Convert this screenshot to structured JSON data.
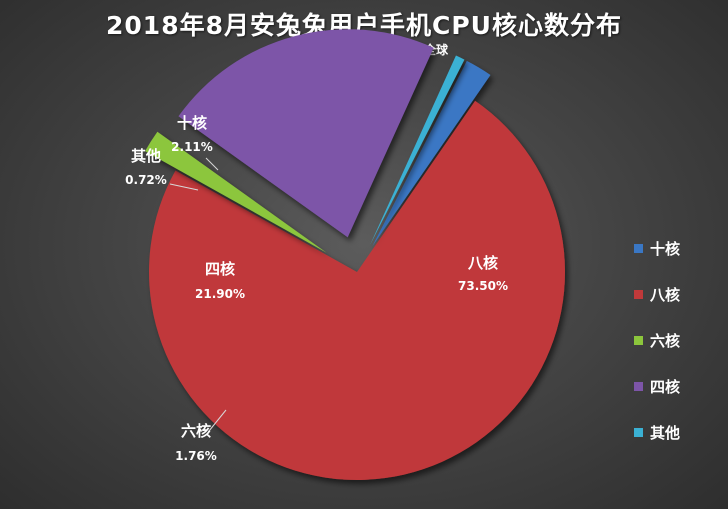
{
  "title": "2018年8月安兔兔用户手机CPU核心数分布",
  "subtitle": "数据来源：安兔兔，安卓，全球",
  "chart_data": {
    "type": "pie",
    "title": "2018年8月安兔兔用户手机CPU核心数分布",
    "subtitle": "数据来源：安兔兔，安卓，全球",
    "legend_position": "right",
    "slices": [
      {
        "name": "十核",
        "value": 2.11,
        "label": "2.11%",
        "color": "#3a77c4"
      },
      {
        "name": "八核",
        "value": 73.5,
        "label": "73.50%",
        "color": "#c0393a"
      },
      {
        "name": "六核",
        "value": 1.76,
        "label": "1.76%",
        "color": "#8cc63c"
      },
      {
        "name": "四核",
        "value": 21.9,
        "label": "21.90%",
        "color": "#7d55a8"
      },
      {
        "name": "其他",
        "value": 0.72,
        "label": "0.72%",
        "color": "#3bb1d4"
      }
    ]
  }
}
